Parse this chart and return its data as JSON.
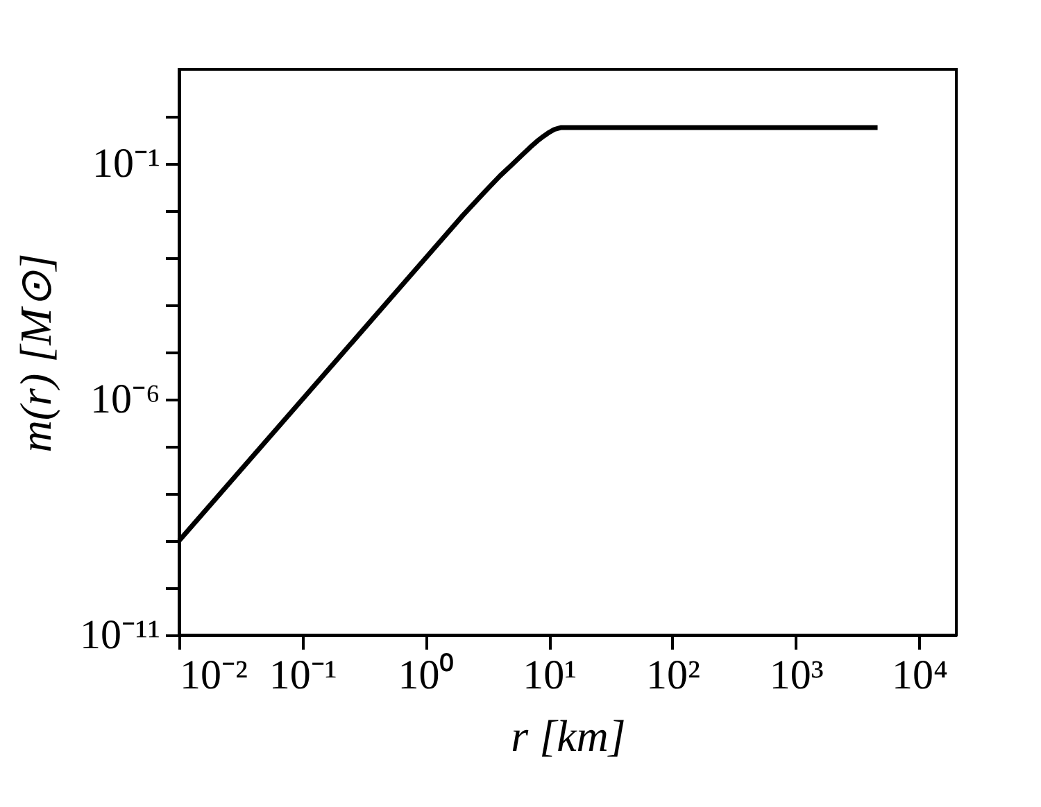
{
  "chart_data": {
    "type": "line",
    "xlabel": "r   [km]",
    "ylabel": "m(r)   [M⊙]",
    "log": "xy",
    "grid": false,
    "marker": "none",
    "line_style": "solid",
    "xlim": [
      0.01,
      20000
    ],
    "ylim": [
      1e-11,
      10
    ],
    "xticks": [
      {
        "value": 0.01,
        "label": "10⁻²"
      },
      {
        "value": 0.1,
        "label": "10⁻¹"
      },
      {
        "value": 1,
        "label": "10⁰"
      },
      {
        "value": 10,
        "label": "10¹"
      },
      {
        "value": 100,
        "label": "10²"
      },
      {
        "value": 1000,
        "label": "10³"
      },
      {
        "value": 10000,
        "label": "10⁴"
      }
    ],
    "yticks": [
      {
        "value": 1e-11,
        "label": "10⁻¹¹"
      },
      {
        "value": 1e-10,
        "label": null
      },
      {
        "value": 1e-09,
        "label": null
      },
      {
        "value": 1e-08,
        "label": null
      },
      {
        "value": 1e-07,
        "label": null
      },
      {
        "value": 1e-06,
        "label": "10⁻⁶"
      },
      {
        "value": 1e-05,
        "label": null
      },
      {
        "value": 0.0001,
        "label": null
      },
      {
        "value": 0.001,
        "label": null
      },
      {
        "value": 0.01,
        "label": null
      },
      {
        "value": 0.1,
        "label": "10⁻¹"
      },
      {
        "value": 1,
        "label": null
      }
    ],
    "series": [
      {
        "color": "#000000",
        "x": [
          0.01,
          0.1,
          1,
          2,
          3,
          4,
          5,
          6,
          7,
          8,
          9,
          10,
          11,
          12.4,
          100,
          1000,
          4600
        ],
        "values": [
          1e-09,
          1e-06,
          0.001,
          0.008,
          0.025,
          0.055,
          0.095,
          0.15,
          0.22,
          0.3,
          0.38,
          0.46,
          0.53,
          0.58,
          0.58,
          0.58,
          0.58
        ]
      }
    ]
  }
}
